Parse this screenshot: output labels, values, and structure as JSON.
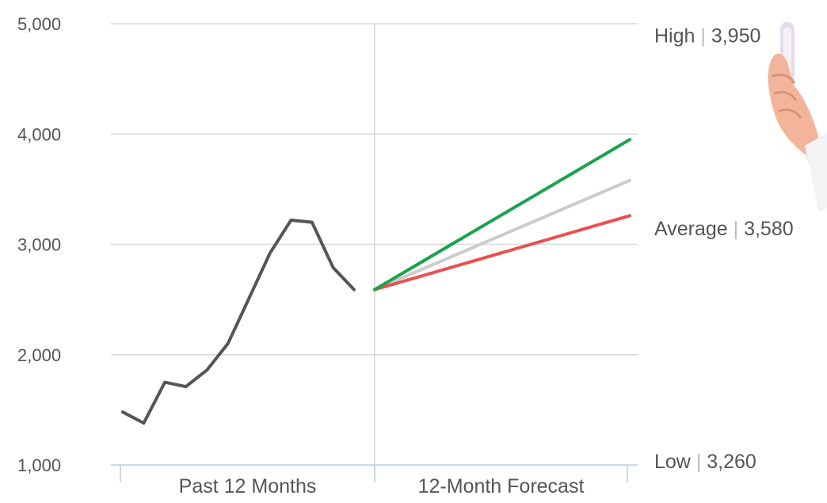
{
  "chart_data": {
    "type": "line",
    "title": "",
    "xlabel": "",
    "ylabel": "",
    "ylim": [
      1000,
      5000
    ],
    "y_ticks": [
      "1,000",
      "2,000",
      "3,000",
      "4,000",
      "5,000"
    ],
    "y_tick_values": [
      1000,
      2000,
      3000,
      4000,
      5000
    ],
    "grid": true,
    "categories": [
      "Past 12 Months",
      "12-Month Forecast"
    ],
    "past_series": {
      "x": [
        1,
        2,
        3,
        4,
        5,
        6,
        7,
        8,
        9,
        10,
        11,
        12
      ],
      "values": [
        1480,
        1380,
        1750,
        1710,
        1860,
        2100,
        2510,
        2920,
        3220,
        3200,
        2790,
        2590
      ],
      "color": "#555555"
    },
    "forecast_start": 2590,
    "forecast_series": [
      {
        "key": "high",
        "end": 3950,
        "color": "#1aa34a"
      },
      {
        "key": "average",
        "end": 3580,
        "color": "#cccccc"
      },
      {
        "key": "low",
        "end": 3260,
        "color": "#e8504f"
      }
    ],
    "annotations": [
      {
        "key": "high",
        "name": "High",
        "value": "3,950",
        "y": 4890
      },
      {
        "key": "average",
        "name": "Average",
        "value": "3,580",
        "y": 3140
      },
      {
        "key": "low",
        "name": "Low",
        "value": "3,260",
        "y": 1030
      }
    ]
  },
  "decoration": {
    "hand_icon": "hand-holding-device-icon"
  }
}
